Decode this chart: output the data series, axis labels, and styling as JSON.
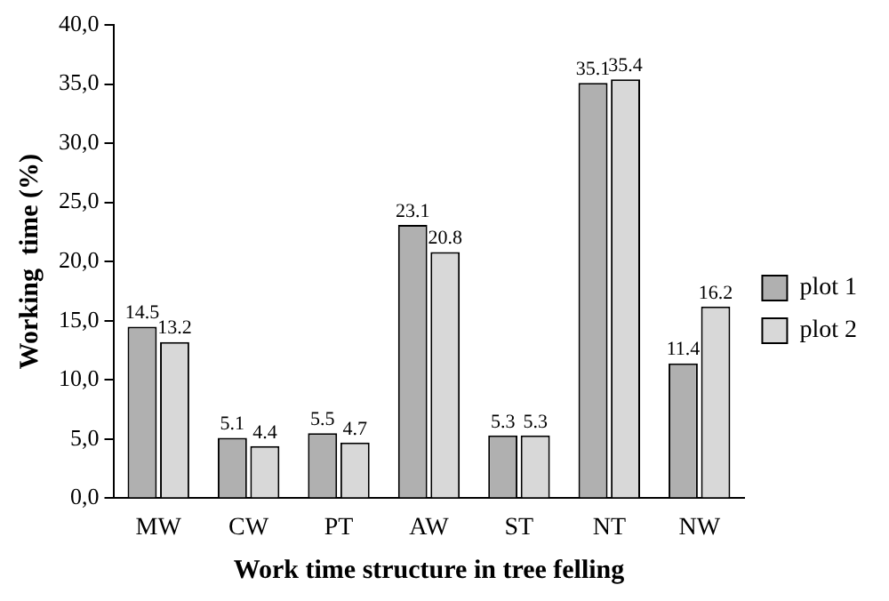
{
  "chart_data": {
    "type": "bar",
    "xlabel": "Work time structure in tree felling",
    "ylabel": "Working  time (%)",
    "categories": [
      "MW",
      "CW",
      "PT",
      "AW",
      "ST",
      "NT",
      "NW"
    ],
    "series": [
      {
        "name": "plot 1",
        "color": "#b0b0b0",
        "values": [
          14.5,
          5.1,
          5.5,
          23.1,
          5.3,
          35.1,
          11.4
        ]
      },
      {
        "name": "plot 2",
        "color": "#d8d8d8",
        "values": [
          13.2,
          4.4,
          4.7,
          20.8,
          5.3,
          35.4,
          16.2
        ]
      }
    ],
    "ylim": [
      0,
      40
    ],
    "yticks": [
      {
        "value": 0,
        "label": "0,0"
      },
      {
        "value": 5,
        "label": "5,0"
      },
      {
        "value": 10,
        "label": "10,0"
      },
      {
        "value": 15,
        "label": "15,0"
      },
      {
        "value": 20,
        "label": "20,0"
      },
      {
        "value": 25,
        "label": "25,0"
      },
      {
        "value": 30,
        "label": "30,0"
      },
      {
        "value": 35,
        "label": "35,0"
      },
      {
        "value": 40,
        "label": "40,0"
      }
    ],
    "grid": false,
    "legend": "right",
    "data_labels": true
  }
}
